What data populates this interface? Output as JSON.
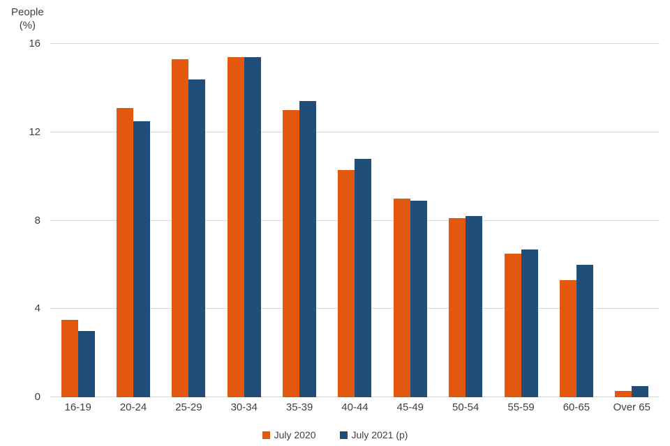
{
  "chart_data": {
    "type": "bar",
    "title": "",
    "ylabel": "People\n(%)",
    "xlabel": "",
    "categories": [
      "16-19",
      "20-24",
      "25-29",
      "30-34",
      "35-39",
      "40-44",
      "45-49",
      "50-54",
      "55-59",
      "60-65",
      "Over 65"
    ],
    "series": [
      {
        "name": "July 2020",
        "color": "#e3570e",
        "values": [
          3.5,
          13.1,
          15.3,
          15.4,
          13.0,
          10.3,
          9.0,
          8.1,
          6.5,
          5.3,
          0.3
        ]
      },
      {
        "name": "July 2021 (p)",
        "color": "#1f4e79",
        "values": [
          3.0,
          12.5,
          14.4,
          15.4,
          13.4,
          10.8,
          8.9,
          8.2,
          6.7,
          6.0,
          0.5
        ]
      }
    ],
    "ylim": [
      0,
      16
    ],
    "yticks": [
      0,
      4,
      8,
      12,
      16
    ],
    "grid": true,
    "gridline_color": "#d9d9d9",
    "legend_position": "bottom"
  }
}
